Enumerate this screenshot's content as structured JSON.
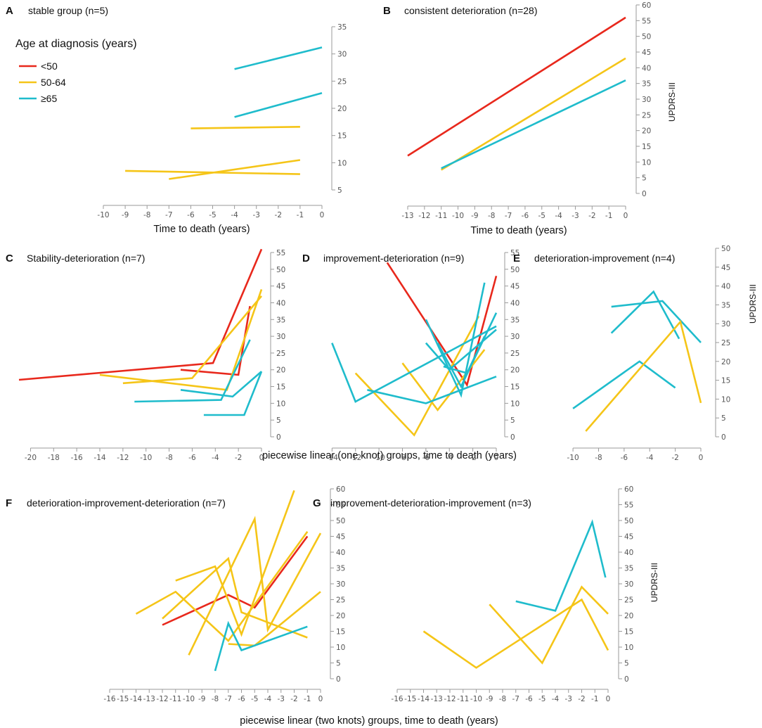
{
  "figure": {
    "shared_x_label_middle": "piecewise linear (one knot) groups, time to death (years)",
    "shared_x_label_bottom": "piecewise linear (two knots) groups, time to death (years)"
  },
  "legend": {
    "title": "Age at diagnosis (years)",
    "entries": [
      {
        "label": "<50",
        "color": "#e8281c"
      },
      {
        "label": "50-64",
        "color": "#f5c518"
      },
      {
        "label": "≥65",
        "color": "#1fbccc"
      }
    ]
  },
  "colors": {
    "lt50": "#e8281c",
    "a50_64": "#f5c518",
    "ge65": "#1fbccc",
    "axis": "#9a9a9a"
  },
  "chart_data": [
    {
      "id": "A",
      "type": "line",
      "panel_label": "A",
      "title": "stable group (n=5)",
      "xlabel": "Time to death (years)",
      "ylabel": "",
      "xlim": [
        -10,
        0
      ],
      "ylim": [
        5,
        35
      ],
      "xticks": [
        -10,
        -9,
        -8,
        -7,
        -6,
        -5,
        -4,
        -3,
        -2,
        -1,
        0
      ],
      "yticks": [
        5,
        10,
        15,
        20,
        25,
        30,
        35
      ],
      "series": [
        {
          "group": "ge65",
          "x": [
            -4,
            0
          ],
          "y": [
            27.2,
            31.2
          ]
        },
        {
          "group": "ge65",
          "x": [
            -4,
            0
          ],
          "y": [
            18.4,
            22.8
          ]
        },
        {
          "group": "a50_64",
          "x": [
            -6,
            -1
          ],
          "y": [
            16.3,
            16.6
          ]
        },
        {
          "group": "a50_64",
          "x": [
            -9,
            -1
          ],
          "y": [
            8.5,
            7.9
          ]
        },
        {
          "group": "a50_64",
          "x": [
            -7,
            -1
          ],
          "y": [
            7.0,
            10.5
          ]
        }
      ]
    },
    {
      "id": "B",
      "type": "line",
      "panel_label": "B",
      "title": "consistent deterioration (n=28)",
      "xlabel": "Time to death (years)",
      "ylabel": "UPDRS-III",
      "xlim": [
        -13,
        0
      ],
      "ylim": [
        0,
        60
      ],
      "xticks": [
        -13,
        -12,
        -11,
        -10,
        -9,
        -8,
        -7,
        -6,
        -5,
        -4,
        -3,
        -2,
        -1,
        0
      ],
      "yticks": [
        0,
        5,
        10,
        15,
        20,
        25,
        30,
        35,
        40,
        45,
        50,
        55,
        60
      ],
      "series": [
        {
          "group": "lt50",
          "x": [
            -13,
            0
          ],
          "y": [
            12,
            56
          ]
        },
        {
          "group": "a50_64",
          "x": [
            -11,
            0
          ],
          "y": [
            7.5,
            43
          ]
        },
        {
          "group": "ge65",
          "x": [
            -11,
            0
          ],
          "y": [
            8,
            36
          ]
        }
      ]
    },
    {
      "id": "C",
      "type": "line",
      "panel_label": "C",
      "title": "Stability-deterioration (n=7)",
      "xlabel": "",
      "ylabel": "",
      "xlim": [
        -21,
        0
      ],
      "ylim": [
        0,
        55
      ],
      "xticks": [
        -20,
        -18,
        -16,
        -14,
        -12,
        -10,
        -8,
        -6,
        -4,
        -2,
        0
      ],
      "yticks": [
        0,
        5,
        10,
        15,
        20,
        25,
        30,
        35,
        40,
        45,
        50,
        55
      ],
      "series": [
        {
          "group": "lt50",
          "x": [
            -21,
            -4.2,
            0
          ],
          "y": [
            17,
            22,
            56
          ]
        },
        {
          "group": "lt50",
          "x": [
            -7,
            -2,
            -1
          ],
          "y": [
            20,
            18.5,
            39
          ]
        },
        {
          "group": "a50_64",
          "x": [
            -14,
            -3,
            0
          ],
          "y": [
            18.5,
            14,
            44
          ]
        },
        {
          "group": "a50_64",
          "x": [
            -12,
            -6,
            0
          ],
          "y": [
            16,
            17.5,
            42
          ]
        },
        {
          "group": "ge65",
          "x": [
            -11,
            -3.5,
            -1
          ],
          "y": [
            10.5,
            11,
            29
          ]
        },
        {
          "group": "ge65",
          "x": [
            -7,
            -2.5,
            0
          ],
          "y": [
            14,
            12,
            19.5
          ]
        },
        {
          "group": "ge65",
          "x": [
            -5,
            -1.5,
            0
          ],
          "y": [
            6.5,
            6.5,
            19.5
          ]
        }
      ]
    },
    {
      "id": "D",
      "type": "line",
      "panel_label": "D",
      "title": "improvement-deterioration (n=9)",
      "xlabel": "",
      "ylabel": "",
      "xlim": [
        -14.5,
        0
      ],
      "ylim": [
        0,
        55
      ],
      "xticks": [
        -14,
        -12,
        -10,
        -8,
        -6,
        -4,
        -2,
        0
      ],
      "yticks": [
        0,
        5,
        10,
        15,
        20,
        25,
        30,
        35,
        40,
        45,
        50,
        55
      ],
      "series": [
        {
          "group": "lt50",
          "x": [
            -9.3,
            -2.5,
            0
          ],
          "y": [
            52,
            15.5,
            48
          ]
        },
        {
          "group": "a50_64",
          "x": [
            -12,
            -7,
            -1.5
          ],
          "y": [
            19,
            0.5,
            36
          ]
        },
        {
          "group": "a50_64",
          "x": [
            -8,
            -5,
            -1
          ],
          "y": [
            22,
            8,
            26
          ]
        },
        {
          "group": "ge65",
          "x": [
            -14,
            -12,
            0
          ],
          "y": [
            28,
            10.5,
            33
          ]
        },
        {
          "group": "ge65",
          "x": [
            -11,
            -6,
            0
          ],
          "y": [
            14,
            10,
            18
          ]
        },
        {
          "group": "ge65",
          "x": [
            -6,
            -3,
            -1
          ],
          "y": [
            35,
            12.5,
            46
          ]
        },
        {
          "group": "ge65",
          "x": [
            -5,
            -3,
            0
          ],
          "y": [
            28,
            15,
            37
          ]
        },
        {
          "group": "ge65",
          "x": [
            -6,
            -4,
            0
          ],
          "y": [
            28,
            20,
            32
          ]
        },
        {
          "group": "ge65",
          "x": [
            -4.5,
            -2.5,
            -1
          ],
          "y": [
            21,
            19,
            30
          ]
        }
      ]
    },
    {
      "id": "E",
      "type": "line",
      "panel_label": "E",
      "title": "deterioration-improvement (n=4)",
      "xlabel": "",
      "ylabel": "UPDRS-III",
      "xlim": [
        -10.5,
        0
      ],
      "ylim": [
        0,
        50
      ],
      "xticks": [
        -10,
        -8,
        -6,
        -4,
        -2,
        0
      ],
      "yticks": [
        0,
        5,
        10,
        15,
        20,
        25,
        30,
        35,
        40,
        45,
        50
      ],
      "series": [
        {
          "group": "ge65",
          "x": [
            -7,
            -3.7,
            -1.7
          ],
          "y": [
            27.5,
            38.5,
            26
          ]
        },
        {
          "group": "ge65",
          "x": [
            -7,
            -3,
            0
          ],
          "y": [
            34.5,
            36,
            25
          ]
        },
        {
          "group": "ge65",
          "x": [
            -10,
            -4.8,
            -2
          ],
          "y": [
            7.5,
            20,
            13
          ]
        },
        {
          "group": "a50_64",
          "x": [
            -9,
            -1.6,
            0
          ],
          "y": [
            1.5,
            30.5,
            9
          ]
        }
      ]
    },
    {
      "id": "F",
      "type": "line",
      "panel_label": "F",
      "title": "deterioration-improvement-deterioration (n=7)",
      "xlabel": "",
      "ylabel": "",
      "xlim": [
        -16,
        0
      ],
      "ylim": [
        0,
        60
      ],
      "xticks": [
        -16,
        -15,
        -14,
        -13,
        -12,
        -11,
        -10,
        -9,
        -8,
        -7,
        -6,
        -5,
        -4,
        -3,
        -2,
        -1,
        0
      ],
      "yticks": [
        0,
        5,
        10,
        15,
        20,
        25,
        30,
        35,
        40,
        45,
        50,
        55,
        60
      ],
      "series": [
        {
          "group": "lt50",
          "x": [
            -12,
            -7,
            -5,
            -1
          ],
          "y": [
            17,
            26.5,
            22.5,
            45
          ]
        },
        {
          "group": "a50_64",
          "x": [
            -14,
            -11,
            -7,
            -1
          ],
          "y": [
            20.5,
            27.5,
            12,
            46.5
          ]
        },
        {
          "group": "a50_64",
          "x": [
            -11,
            -8,
            -6,
            -2
          ],
          "y": [
            31,
            35.5,
            14,
            59.5
          ]
        },
        {
          "group": "a50_64",
          "x": [
            -12,
            -7,
            -6,
            -1
          ],
          "y": [
            19,
            38,
            21,
            13
          ]
        },
        {
          "group": "a50_64",
          "x": [
            -10,
            -5,
            -4,
            0
          ],
          "y": [
            7.5,
            50.5,
            15.5,
            46
          ]
        },
        {
          "group": "a50_64",
          "x": [
            -7,
            -5,
            0
          ],
          "y": [
            11,
            10.5,
            27.5
          ]
        },
        {
          "group": "ge65",
          "x": [
            -8,
            -7,
            -6,
            -1
          ],
          "y": [
            2.5,
            17.5,
            9,
            16.5
          ]
        }
      ]
    },
    {
      "id": "G",
      "type": "line",
      "panel_label": "G",
      "title": "improvement-deterioration-improvement (n=3)",
      "xlabel": "",
      "ylabel": "UPDRS-III",
      "xlim": [
        -16,
        0
      ],
      "ylim": [
        0,
        60
      ],
      "xticks": [
        -16,
        -15,
        -14,
        -13,
        -12,
        -11,
        -10,
        -9,
        -8,
        -7,
        -6,
        -5,
        -4,
        -3,
        -2,
        -1,
        0
      ],
      "yticks": [
        0,
        5,
        10,
        15,
        20,
        25,
        30,
        35,
        40,
        45,
        50,
        55,
        60
      ],
      "series": [
        {
          "group": "ge65",
          "x": [
            -7,
            -4,
            -1.2,
            -0.2
          ],
          "y": [
            24.5,
            21.5,
            49.5,
            32
          ]
        },
        {
          "group": "a50_64",
          "x": [
            -14,
            -10,
            -2,
            0
          ],
          "y": [
            15,
            3.5,
            25,
            9
          ]
        },
        {
          "group": "a50_64",
          "x": [
            -9,
            -5,
            -2,
            0
          ],
          "y": [
            23.5,
            5,
            29,
            20.5
          ]
        }
      ]
    }
  ]
}
